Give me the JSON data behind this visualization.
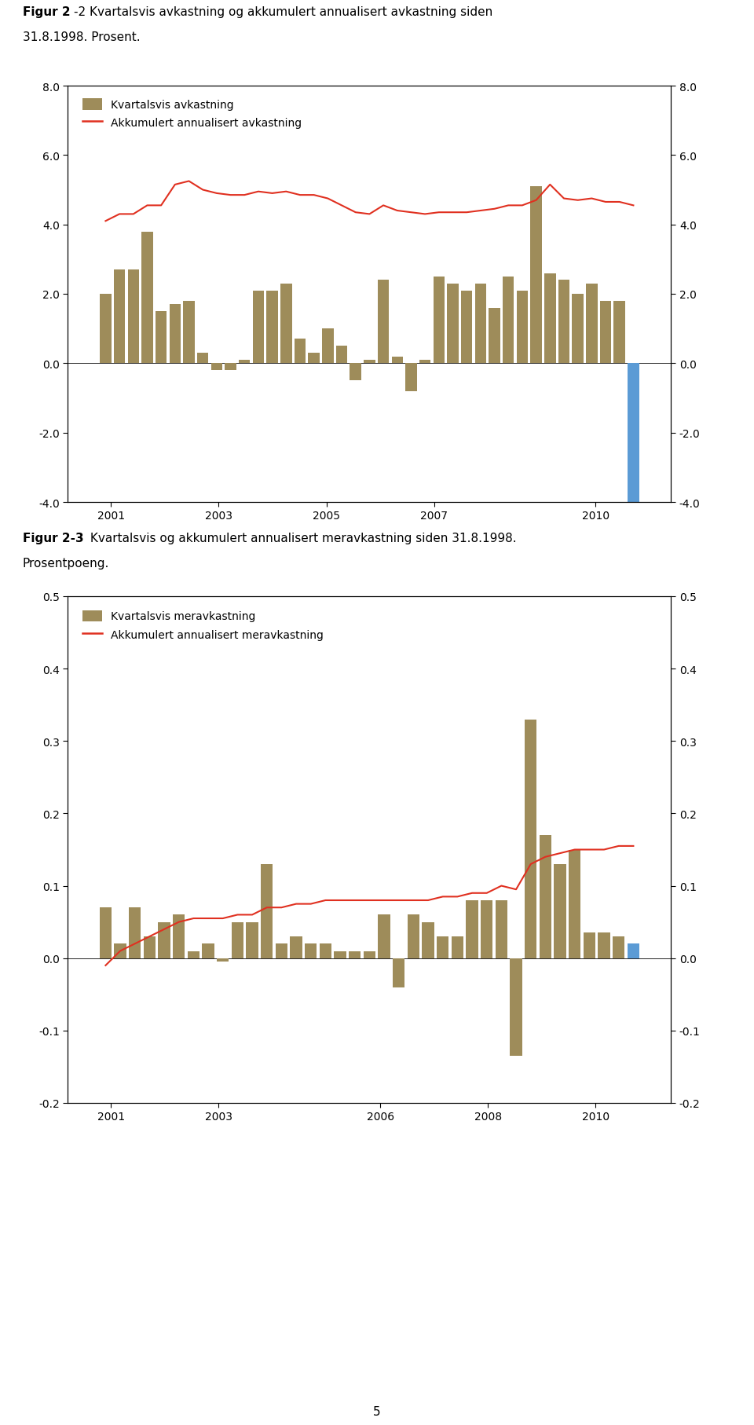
{
  "fig1_title_bold": "Figur 2",
  "fig1_title_rest": "-2 Kvartalsvis avkastning og akkumulert annualisert avkastning siden",
  "fig1_subtitle": "31.8.1998. Prosent.",
  "fig2_title_bold": "Figur 2-3",
  "fig2_title_rest": " Kvartalsvis og akkumulert annualisert meravkastning siden 31.8.1998.",
  "fig2_subtitle": "Prosentpoeng.",
  "fig1_bar_legend": "Kvartalsvis avkastning",
  "fig1_line_legend": "Akkumulert annualisert avkastning",
  "fig2_bar_legend": "Kvartalsvis meravkastning",
  "fig2_line_legend": "Akkumulert annualisert meravkastning",
  "bar_color": "#9e8c5a",
  "bar_color_blue": "#5b9bd5",
  "line_color": "#e03020",
  "fig1_ylim": [
    -4.0,
    8.0
  ],
  "fig1_yticks": [
    -4.0,
    -2.0,
    0.0,
    2.0,
    4.0,
    6.0,
    8.0
  ],
  "fig2_ylim": [
    -0.2,
    0.5
  ],
  "fig2_yticks": [
    -0.2,
    -0.1,
    0.0,
    0.1,
    0.2,
    0.3,
    0.4,
    0.5
  ],
  "fig1_xtick_years": [
    2001,
    2003,
    2005,
    2007,
    2010
  ],
  "fig1_xtick_labels": [
    "2001",
    "2003",
    "2005",
    "2007",
    "2010"
  ],
  "fig2_xtick_years": [
    2001,
    2003,
    2006,
    2008,
    2010
  ],
  "fig2_xtick_labels": [
    "2001",
    "2003",
    "2006",
    "2008",
    "2010"
  ],
  "fig1_xlim": [
    2000.2,
    2011.4
  ],
  "fig2_xlim": [
    2000.2,
    2011.4
  ],
  "fig1_bars": [
    2.0,
    2.7,
    2.7,
    3.8,
    1.5,
    1.7,
    1.8,
    0.3,
    -0.2,
    -0.2,
    0.1,
    2.1,
    2.1,
    2.3,
    0.7,
    0.3,
    1.0,
    0.5,
    -0.5,
    0.1,
    2.4,
    0.2,
    -0.8,
    0.1,
    2.5,
    2.3,
    2.1,
    2.3,
    1.6,
    2.5,
    2.1,
    5.1,
    2.6,
    2.4,
    2.0,
    2.3,
    1.8,
    1.8,
    -4.0
  ],
  "fig1_bar_colors": [
    "#9e8c5a",
    "#9e8c5a",
    "#9e8c5a",
    "#9e8c5a",
    "#9e8c5a",
    "#9e8c5a",
    "#9e8c5a",
    "#9e8c5a",
    "#9e8c5a",
    "#9e8c5a",
    "#9e8c5a",
    "#9e8c5a",
    "#9e8c5a",
    "#9e8c5a",
    "#9e8c5a",
    "#9e8c5a",
    "#9e8c5a",
    "#9e8c5a",
    "#9e8c5a",
    "#9e8c5a",
    "#9e8c5a",
    "#9e8c5a",
    "#9e8c5a",
    "#9e8c5a",
    "#9e8c5a",
    "#9e8c5a",
    "#9e8c5a",
    "#9e8c5a",
    "#9e8c5a",
    "#9e8c5a",
    "#9e8c5a",
    "#9e8c5a",
    "#9e8c5a",
    "#9e8c5a",
    "#9e8c5a",
    "#9e8c5a",
    "#9e8c5a",
    "#9e8c5a",
    "#5b9bd5"
  ],
  "fig1_line": [
    4.1,
    4.3,
    4.3,
    4.55,
    4.55,
    5.15,
    5.25,
    5.0,
    4.9,
    4.85,
    4.85,
    4.95,
    4.9,
    4.95,
    4.85,
    4.85,
    4.75,
    4.55,
    4.35,
    4.3,
    4.55,
    4.4,
    4.35,
    4.3,
    4.35,
    4.35,
    4.35,
    4.4,
    4.45,
    4.55,
    4.55,
    4.7,
    5.15,
    4.75,
    4.7,
    4.75,
    4.65,
    4.65,
    4.55
  ],
  "fig2_bars": [
    0.07,
    0.02,
    0.07,
    0.03,
    0.05,
    0.06,
    0.01,
    0.02,
    -0.005,
    0.05,
    0.05,
    0.13,
    0.02,
    0.03,
    0.02,
    0.02,
    0.01,
    0.01,
    0.01,
    0.06,
    -0.04,
    0.06,
    0.05,
    0.03,
    0.03,
    0.08,
    0.08,
    0.08,
    -0.135,
    0.33,
    0.17,
    0.13,
    0.15,
    0.035,
    0.035,
    0.03,
    0.02
  ],
  "fig2_bar_colors": [
    "#9e8c5a",
    "#9e8c5a",
    "#9e8c5a",
    "#9e8c5a",
    "#9e8c5a",
    "#9e8c5a",
    "#9e8c5a",
    "#9e8c5a",
    "#9e8c5a",
    "#9e8c5a",
    "#9e8c5a",
    "#9e8c5a",
    "#9e8c5a",
    "#9e8c5a",
    "#9e8c5a",
    "#9e8c5a",
    "#9e8c5a",
    "#9e8c5a",
    "#9e8c5a",
    "#9e8c5a",
    "#9e8c5a",
    "#9e8c5a",
    "#9e8c5a",
    "#9e8c5a",
    "#9e8c5a",
    "#9e8c5a",
    "#9e8c5a",
    "#9e8c5a",
    "#9e8c5a",
    "#9e8c5a",
    "#9e8c5a",
    "#9e8c5a",
    "#9e8c5a",
    "#9e8c5a",
    "#9e8c5a",
    "#9e8c5a",
    "#5b9bd5"
  ],
  "fig2_line": [
    -0.01,
    0.01,
    0.02,
    0.03,
    0.04,
    0.05,
    0.055,
    0.055,
    0.055,
    0.06,
    0.06,
    0.07,
    0.07,
    0.075,
    0.075,
    0.08,
    0.08,
    0.08,
    0.08,
    0.08,
    0.08,
    0.08,
    0.08,
    0.085,
    0.085,
    0.09,
    0.09,
    0.1,
    0.095,
    0.13,
    0.14,
    0.145,
    0.15,
    0.15,
    0.15,
    0.155,
    0.155
  ],
  "background_color": "#ffffff",
  "spine_color": "#000000",
  "text_color": "#000000",
  "fontsize_title": 11,
  "fontsize_subtitle": 11,
  "fontsize_tick": 10,
  "fontsize_legend": 10
}
